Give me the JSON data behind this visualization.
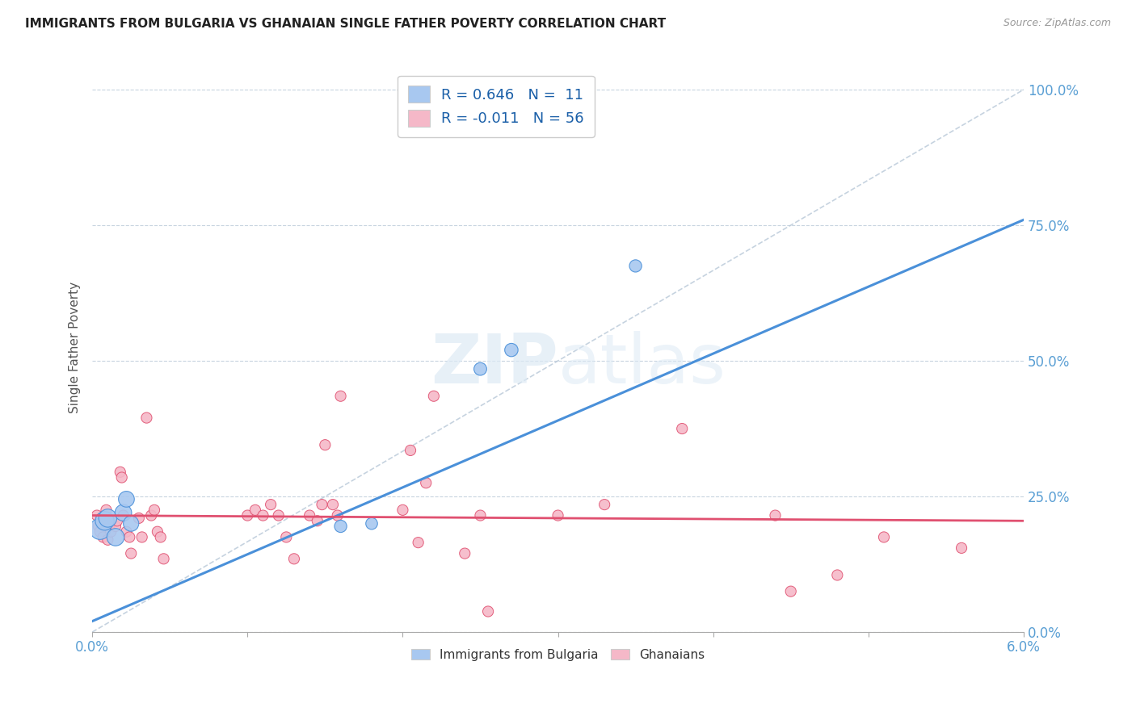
{
  "title": "IMMIGRANTS FROM BULGARIA VS GHANAIAN SINGLE FATHER POVERTY CORRELATION CHART",
  "source": "Source: ZipAtlas.com",
  "ylabel": "Single Father Poverty",
  "yticks": [
    "100.0%",
    "75.0%",
    "50.0%",
    "25.0%",
    "0.0%"
  ],
  "ytick_vals": [
    1.0,
    0.75,
    0.5,
    0.25,
    0.0
  ],
  "xlim": [
    0.0,
    0.06
  ],
  "ylim": [
    0.0,
    1.05
  ],
  "legend_label_bulgaria": "Immigrants from Bulgaria",
  "legend_label_ghanaian": "Ghanaians",
  "color_bulgaria": "#a8c8f0",
  "color_ghanaian": "#f5b8c8",
  "color_bulgaria_line": "#4a90d9",
  "color_ghanaian_line": "#e05070",
  "color_diagonal": "#b8c8d8",
  "bulgaria_scatter": [
    [
      0.0005,
      0.19
    ],
    [
      0.0008,
      0.205
    ],
    [
      0.001,
      0.21
    ],
    [
      0.0015,
      0.175
    ],
    [
      0.002,
      0.22
    ],
    [
      0.0022,
      0.245
    ],
    [
      0.0025,
      0.2
    ],
    [
      0.016,
      0.195
    ],
    [
      0.018,
      0.2
    ],
    [
      0.025,
      0.485
    ],
    [
      0.027,
      0.52
    ],
    [
      0.035,
      0.675
    ]
  ],
  "ghanaian_scatter": [
    [
      0.0003,
      0.215
    ],
    [
      0.0004,
      0.195
    ],
    [
      0.0005,
      0.185
    ],
    [
      0.0006,
      0.21
    ],
    [
      0.0007,
      0.175
    ],
    [
      0.0008,
      0.205
    ],
    [
      0.0009,
      0.225
    ],
    [
      0.001,
      0.17
    ],
    [
      0.0011,
      0.195
    ],
    [
      0.0012,
      0.185
    ],
    [
      0.0015,
      0.195
    ],
    [
      0.0016,
      0.205
    ],
    [
      0.0018,
      0.295
    ],
    [
      0.0019,
      0.285
    ],
    [
      0.002,
      0.215
    ],
    [
      0.0022,
      0.185
    ],
    [
      0.0024,
      0.175
    ],
    [
      0.0025,
      0.145
    ],
    [
      0.003,
      0.21
    ],
    [
      0.0032,
      0.175
    ],
    [
      0.0035,
      0.395
    ],
    [
      0.0038,
      0.215
    ],
    [
      0.004,
      0.225
    ],
    [
      0.0042,
      0.185
    ],
    [
      0.0044,
      0.175
    ],
    [
      0.0046,
      0.135
    ],
    [
      0.01,
      0.215
    ],
    [
      0.0105,
      0.225
    ],
    [
      0.011,
      0.215
    ],
    [
      0.0115,
      0.235
    ],
    [
      0.012,
      0.215
    ],
    [
      0.0125,
      0.175
    ],
    [
      0.013,
      0.135
    ],
    [
      0.014,
      0.215
    ],
    [
      0.0145,
      0.205
    ],
    [
      0.0148,
      0.235
    ],
    [
      0.015,
      0.345
    ],
    [
      0.0155,
      0.235
    ],
    [
      0.0158,
      0.215
    ],
    [
      0.016,
      0.435
    ],
    [
      0.02,
      0.225
    ],
    [
      0.0205,
      0.335
    ],
    [
      0.021,
      0.165
    ],
    [
      0.0215,
      0.275
    ],
    [
      0.022,
      0.435
    ],
    [
      0.024,
      0.145
    ],
    [
      0.025,
      0.215
    ],
    [
      0.0255,
      0.038
    ],
    [
      0.03,
      0.215
    ],
    [
      0.033,
      0.235
    ],
    [
      0.038,
      0.375
    ],
    [
      0.044,
      0.215
    ],
    [
      0.045,
      0.075
    ],
    [
      0.048,
      0.105
    ],
    [
      0.051,
      0.175
    ],
    [
      0.056,
      0.155
    ]
  ],
  "bulgaria_sizes": [
    350,
    280,
    260,
    240,
    220,
    200,
    190,
    120,
    110,
    130,
    140,
    120
  ],
  "ghanaian_size": 90,
  "bul_line_x": [
    0.0,
    0.06
  ],
  "bul_line_y": [
    0.02,
    0.76
  ],
  "gha_line_y": [
    0.215,
    0.205
  ]
}
